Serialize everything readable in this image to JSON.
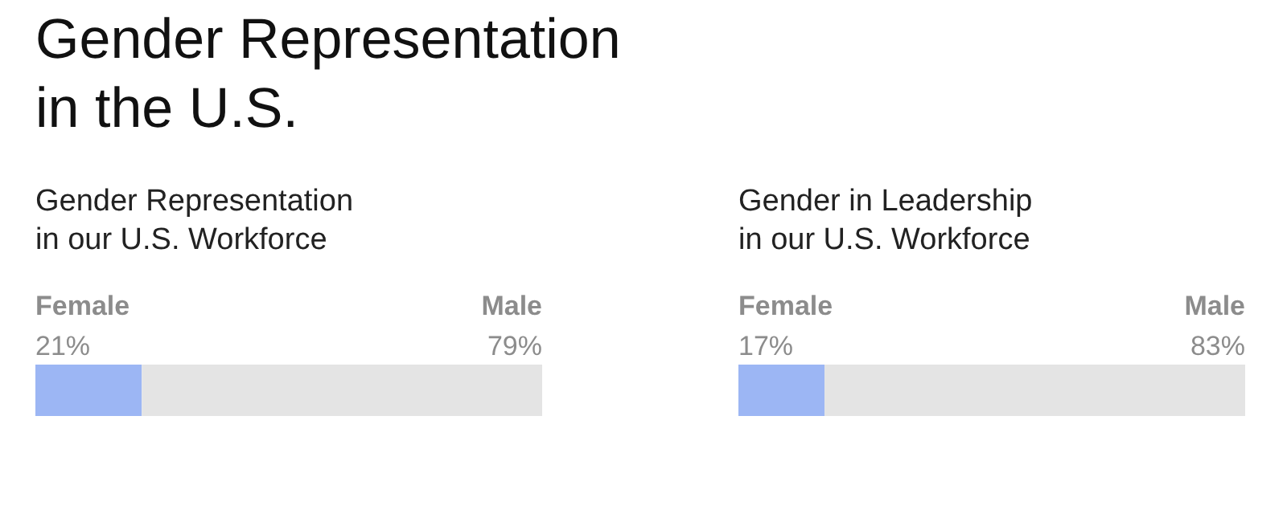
{
  "chart_data": [
    {
      "type": "bar",
      "orientation": "horizontal",
      "stacked": true,
      "title": "Gender Representation\nin the U.S.",
      "subtitle": "Gender Representation\nin our U.S. Workforce",
      "categories": [
        null
      ],
      "tick_labels": false,
      "series": [
        {
          "name": "Female",
          "color": "#9cb6f4",
          "values": [
            21
          ],
          "value_labels": [
            "21%"
          ]
        },
        {
          "name": "Male",
          "color": "#e4e4e4",
          "values": [
            79
          ],
          "value_labels": [
            "79%"
          ]
        }
      ]
    },
    {
      "type": "bar",
      "orientation": "horizontal",
      "stacked": true,
      "subtitle": "Gender in Leadership\nin our U.S. Workforce",
      "categories": [
        null
      ],
      "tick_labels": false,
      "series": [
        {
          "name": "Female",
          "color": "#9cb6f4",
          "values": [
            17
          ],
          "value_labels": [
            "17%"
          ]
        },
        {
          "name": "Male",
          "color": "#e4e4e4",
          "values": [
            83
          ],
          "value_labels": [
            "83%"
          ]
        }
      ]
    }
  ]
}
